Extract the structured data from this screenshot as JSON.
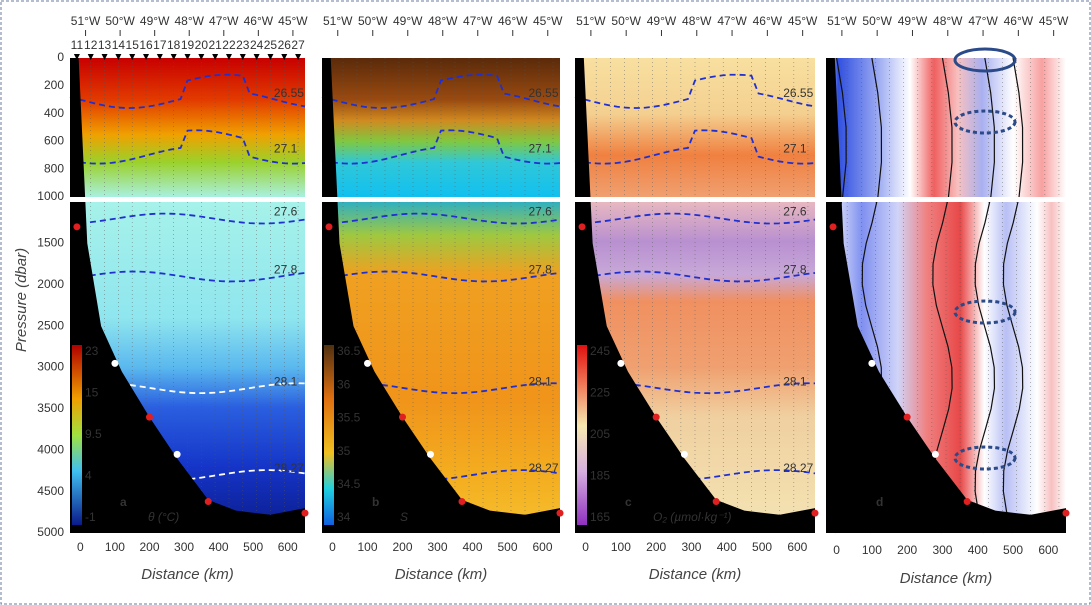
{
  "y_axis": {
    "label": "Pressure (dbar)",
    "ticks": [
      "0",
      "200",
      "400",
      "600",
      "800",
      "1000",
      "1500",
      "2000",
      "2500",
      "3000",
      "3500",
      "4000",
      "4500",
      "5000"
    ]
  },
  "x_axis": {
    "label": "Distance (km)",
    "ticks": [
      "0",
      "100",
      "200",
      "300",
      "400",
      "500",
      "600"
    ]
  },
  "longitudes": [
    "51°W",
    "50°W",
    "49°W",
    "48°W",
    "47°W",
    "46°W",
    "45°W"
  ],
  "stations": [
    "11",
    "12",
    "13",
    "14",
    "15",
    "16",
    "17",
    "18",
    "19",
    "20",
    "21",
    "22",
    "23",
    "24",
    "25",
    "26",
    "27"
  ],
  "isopycnals": [
    "26.55",
    "27.1",
    "27.6",
    "27.8",
    "28.1",
    "28.27"
  ],
  "panels": [
    {
      "letter": "a",
      "colorbar": {
        "label": "θ (°C)",
        "ticks": [
          "23",
          "15",
          "9.5",
          "4",
          "-1"
        ]
      }
    },
    {
      "letter": "b",
      "colorbar": {
        "label": "S",
        "ticks": [
          "36.5",
          "36",
          "35.5",
          "35",
          "34.5",
          "34"
        ]
      }
    },
    {
      "letter": "c",
      "colorbar": {
        "label": "O₂ (µmol·kg⁻¹)",
        "ticks": [
          "245",
          "225",
          "205",
          "185",
          "165"
        ]
      }
    },
    {
      "letter": "d"
    }
  ]
}
